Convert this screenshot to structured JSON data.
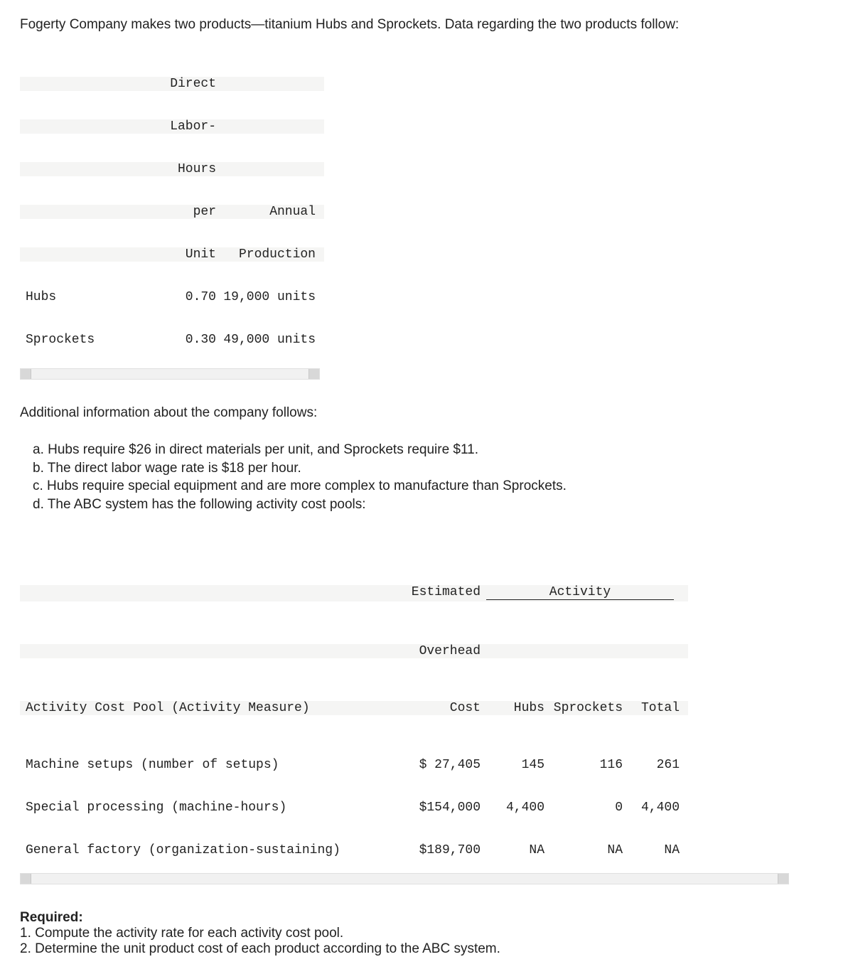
{
  "intro": "Fogerty Company makes two products—titanium Hubs and Sprockets. Data regarding the two products follow:",
  "table1": {
    "head": {
      "dlh_line1": "Direct",
      "dlh_line2": "Labor-",
      "dlh_line3": "Hours",
      "dlh_line4": "per",
      "dlh_line5": "Unit",
      "ann_line1": "Annual",
      "ann_line2": "Production"
    },
    "rows": [
      {
        "label": "Hubs",
        "dlh": "0.70",
        "annual": "19,000 units"
      },
      {
        "label": "Sprockets",
        "dlh": "0.30",
        "annual": "49,000 units"
      }
    ]
  },
  "additional": "Additional information about the company follows:",
  "info": {
    "a": "a. Hubs require $26 in direct materials per unit, and Sprockets require $11.",
    "b": "b. The direct labor wage rate is $18 per hour.",
    "c": "c. Hubs require special equipment and are more complex to manufacture than Sprockets.",
    "d": "d. The ABC system has the following activity cost pools:"
  },
  "table2": {
    "head": {
      "cost_line1": "Estimated",
      "cost_line2": "Overhead",
      "cost_line3": "Cost",
      "activity": "Activity",
      "hubs": "Hubs",
      "sprockets": "Sprockets",
      "total": "Total",
      "pool": "Activity Cost Pool (Activity Measure)"
    },
    "rows": [
      {
        "pool": "Machine setups (number of setups)",
        "cost": "$ 27,405",
        "hubs": "145",
        "spr": "116",
        "tot": "261"
      },
      {
        "pool": "Special processing (machine-hours)",
        "cost": "$154,000",
        "hubs": "4,400",
        "spr": "0",
        "tot": "4,400"
      },
      {
        "pool": "General factory (organization-sustaining)",
        "cost": "$189,700",
        "hubs": "NA",
        "spr": "NA",
        "tot": "NA"
      }
    ]
  },
  "required": {
    "title": "Required:",
    "r1": "1. Compute the activity rate for each activity cost pool.",
    "r2": "2. Determine the unit product cost of each product according to the ABC system."
  }
}
